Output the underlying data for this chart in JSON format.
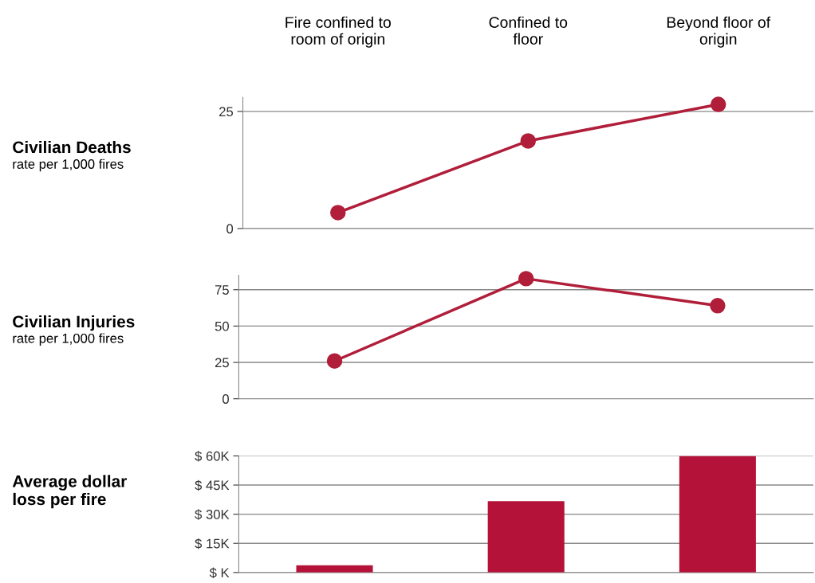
{
  "chart_data": [
    {
      "type": "line",
      "title": "Civilian Deaths",
      "ylabel": "rate per 1,000 fires",
      "categories": [
        "Fire confined to\nroom of origin",
        "Confined to\nfloor",
        "Beyond floor of\norigin"
      ],
      "series": [
        {
          "color": "#b01e3a",
          "values": [
            3.4,
            18.7,
            26.5
          ]
        }
      ],
      "ylim": [
        0,
        28
      ],
      "yticks": [
        0,
        25
      ],
      "grid": "y",
      "marker": "circle",
      "line_style": "solid",
      "legend": false
    },
    {
      "type": "line",
      "title": "Civilian Injuries",
      "ylabel": "rate per 1,000 fires",
      "categories": [
        null,
        null,
        null
      ],
      "series": [
        {
          "color": "#b01e3a",
          "values": [
            26,
            82.6,
            64
          ]
        }
      ],
      "ylim": [
        0,
        85
      ],
      "yticks": [
        0,
        25,
        50,
        75
      ],
      "grid": "y",
      "marker": "circle",
      "line_style": "solid",
      "tick_labels": "y",
      "legend": false
    },
    {
      "type": "bar",
      "title": "Average dollar\nloss per fire",
      "categories": [
        null,
        null,
        null
      ],
      "series": [
        {
          "color": "#b5123a",
          "values": [
            3.7,
            36.7,
            60
          ]
        }
      ],
      "ylim": [
        0,
        60
      ],
      "yticks": [
        {
          "value": 0,
          "label": "$ K"
        },
        {
          "value": 15,
          "label": "$ 15K"
        },
        {
          "value": 30,
          "label": "$ 30K"
        },
        {
          "value": 45,
          "label": "$ 45K"
        },
        {
          "value": 60,
          "label": "$ 60K"
        }
      ],
      "grid": "y",
      "tick_labels": "y",
      "legend": false
    }
  ]
}
